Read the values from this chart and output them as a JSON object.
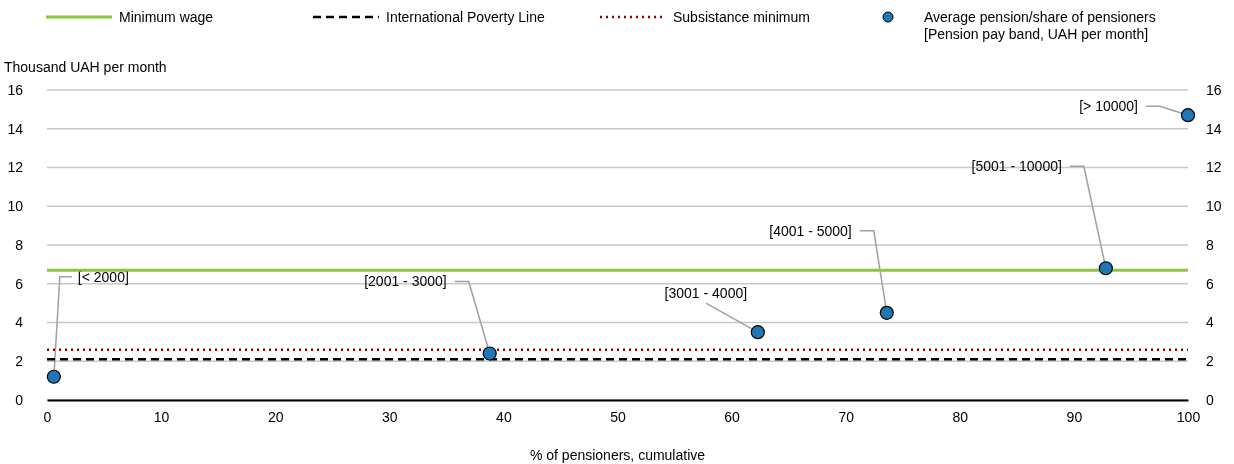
{
  "chart_data": {
    "type": "scatter",
    "ylabel": "Thousand UAH per month",
    "xlabel": "% of pensioners, cumulative",
    "xlim": [
      0,
      100
    ],
    "xticks": [
      0,
      10,
      20,
      30,
      40,
      50,
      60,
      70,
      80,
      90,
      100
    ],
    "ylim": [
      0,
      16
    ],
    "yticks": [
      0,
      2,
      4,
      6,
      8,
      10,
      12,
      14,
      16
    ],
    "y2lim": [
      0,
      16
    ],
    "y2ticks": [
      0,
      2,
      4,
      6,
      8,
      10,
      12,
      14,
      16
    ],
    "grid": "y",
    "legend": "top",
    "series": [
      {
        "name": "Minimum wage",
        "type": "line",
        "color": "#8cc63f",
        "line_style": "solid",
        "x": [
          0,
          100
        ],
        "values": [
          6.7,
          6.7
        ]
      },
      {
        "name": "International Poverty Line",
        "type": "line",
        "color": "#000000",
        "line_style": "dashed",
        "x": [
          0,
          100
        ],
        "values": [
          2.1,
          2.1
        ]
      },
      {
        "name": "Subsistance minimum",
        "type": "line",
        "color": "#8b0000",
        "line_style": "dotted",
        "x": [
          0,
          100
        ],
        "values": [
          2.6,
          2.6
        ]
      },
      {
        "name": "Average pension/share of pensioners [Pension pay band, UAH per month]",
        "color": "#1f77b4",
        "marker": "circle",
        "x": [
          0.6,
          38.8,
          62.3,
          73.6,
          92.8,
          100
        ],
        "values": [
          1.2,
          2.4,
          3.5,
          4.5,
          6.8,
          14.7
        ]
      }
    ],
    "annotations": [
      {
        "text": "[< 2000]",
        "x": 0.6,
        "y": 1.2
      },
      {
        "text": "[2001 - 3000]",
        "x": 38.8,
        "y": 2.4
      },
      {
        "text": "[3001 - 4000]",
        "x": 62.3,
        "y": 3.5
      },
      {
        "text": "[4001 - 5000]",
        "x": 73.6,
        "y": 4.5
      },
      {
        "text": "[5001 - 10000]",
        "x": 92.8,
        "y": 6.8
      },
      {
        "text": "[> 10000]",
        "x": 100,
        "y": 14.7
      }
    ]
  }
}
